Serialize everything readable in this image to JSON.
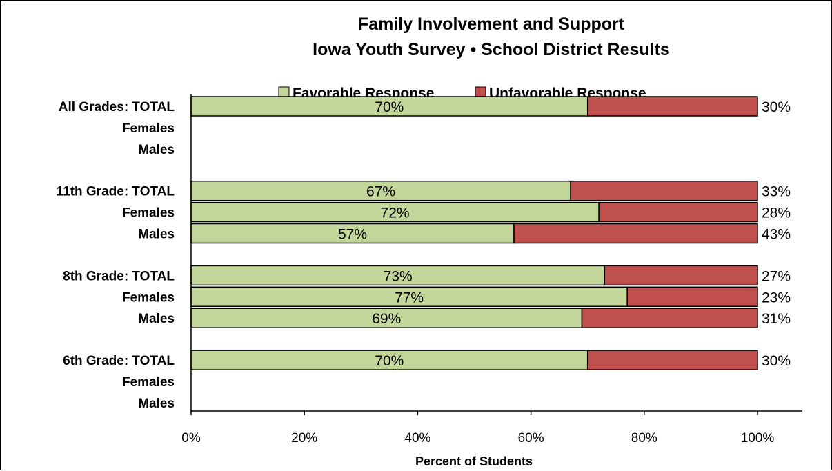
{
  "chart_data": {
    "type": "bar",
    "orientation": "horizontal",
    "stacked": true,
    "title": "Family Involvement and Support",
    "subtitle": "Iowa Youth Survey • School District Results",
    "xlabel": "Percent of Students",
    "ylabel": "",
    "xlim": [
      0,
      100
    ],
    "x_ticks": [
      "0%",
      "20%",
      "40%",
      "60%",
      "80%",
      "100%"
    ],
    "legend_position": "top",
    "grid": false,
    "categories": [
      "All Grades:  TOTAL",
      "Females",
      "Males",
      "11th Grade:  TOTAL",
      "Females",
      "Males",
      "8th Grade:  TOTAL",
      "Females",
      "Males",
      "6th Grade:  TOTAL",
      "Females",
      "Males"
    ],
    "series": [
      {
        "name": "Favorable Response",
        "color": "#c4d79b",
        "values": [
          70,
          null,
          null,
          67,
          72,
          57,
          73,
          77,
          69,
          70,
          null,
          null
        ],
        "labels": [
          "70%",
          "",
          "",
          "67%",
          "72%",
          "57%",
          "73%",
          "77%",
          "69%",
          "70%",
          "",
          ""
        ]
      },
      {
        "name": "Unfavorable Response",
        "color": "#c0504d",
        "values": [
          30,
          null,
          null,
          33,
          28,
          43,
          27,
          23,
          31,
          30,
          null,
          null
        ],
        "labels": [
          "30%",
          "",
          "",
          "33%",
          "28%",
          "43%",
          "27%",
          "23%",
          "31%",
          "30%",
          "",
          ""
        ]
      }
    ]
  }
}
